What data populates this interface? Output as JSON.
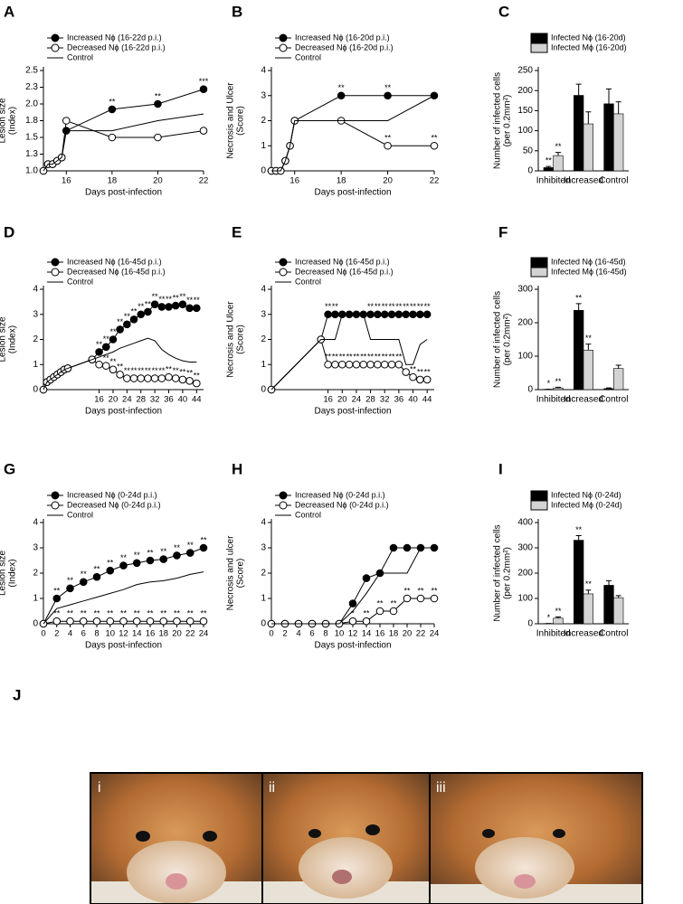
{
  "chart_data": [
    {
      "type": "line",
      "panel": "A",
      "ylabel": [
        "Lesion size",
        "(Index)"
      ],
      "xlabel": "Days post-infection",
      "x": [
        15,
        15.2,
        15.4,
        15.6,
        15.8,
        16,
        18,
        20,
        22
      ],
      "xlim": [
        15,
        22
      ],
      "xticks": [
        16,
        18,
        20,
        22
      ],
      "ylim": [
        1,
        2.5
      ],
      "yticks": [
        {
          "value": 1,
          "label": "1.0"
        },
        {
          "value": 1.25,
          "label": "1.3"
        },
        1.5,
        {
          "value": 1.75,
          "label": "1.8"
        },
        {
          "value": 2,
          "label": "2.0"
        },
        {
          "value": 2.25,
          "label": "2.3"
        },
        2.5
      ],
      "series": [
        {
          "name": "Increased Nϕ (16-22d p.i.)",
          "color": "#000000",
          "marker": "filled",
          "values": [
            1.0,
            1.1,
            1.1,
            1.15,
            1.2,
            1.6,
            1.92,
            2.0,
            2.22
          ],
          "annotations": [
            null,
            null,
            null,
            null,
            null,
            null,
            "**",
            "**",
            "***"
          ]
        },
        {
          "name": "Decreased Nϕ (16-22d p.i.)",
          "color": "#000000",
          "marker": "open",
          "values": [
            1.0,
            1.1,
            1.1,
            1.15,
            1.2,
            1.75,
            1.5,
            1.5,
            1.6
          ]
        },
        {
          "name": "Control",
          "color": "#000000",
          "marker": "none",
          "values": [
            1.0,
            1.1,
            1.1,
            1.15,
            1.2,
            1.6,
            1.6,
            1.75,
            1.85
          ]
        }
      ]
    },
    {
      "type": "line",
      "panel": "B",
      "ylabel": [
        "Necrosis and Ulcer",
        "(Score)"
      ],
      "xlabel": "Days post-infection",
      "x": [
        15,
        15.2,
        15.4,
        15.6,
        15.8,
        16,
        18,
        20,
        22
      ],
      "xlim": [
        15,
        22
      ],
      "xticks": [
        16,
        18,
        20,
        22
      ],
      "ylim": [
        0,
        4
      ],
      "yticks": [
        0,
        1,
        2,
        3,
        4
      ],
      "series": [
        {
          "name": "Increased Nϕ (16-20d p.i.)",
          "color": "#000000",
          "marker": "filled",
          "values": [
            0,
            0,
            0,
            0.4,
            1,
            2,
            3,
            3,
            3
          ],
          "annotations": [
            null,
            null,
            null,
            null,
            null,
            null,
            "**",
            "**",
            null
          ]
        },
        {
          "name": "Decreased Nϕ (16-20d p.i.)",
          "color": "#000000",
          "marker": "open",
          "values": [
            0,
            0,
            0,
            0.4,
            1,
            2,
            2,
            1,
            1
          ],
          "annotations": [
            null,
            null,
            null,
            null,
            null,
            null,
            null,
            "**",
            "**"
          ]
        },
        {
          "name": "Control",
          "color": "#000000",
          "marker": "none",
          "values": [
            0,
            0,
            0,
            0.4,
            1,
            2,
            2,
            2,
            3
          ]
        }
      ]
    },
    {
      "type": "bar",
      "panel": "C",
      "ylabel": [
        "Number of infected cells",
        "(per 0.2mm²)"
      ],
      "categories": [
        "Inhibited",
        "Increased",
        "Control"
      ],
      "ylim": [
        0,
        250
      ],
      "yticks": [
        0,
        50,
        100,
        150,
        200,
        250
      ],
      "series": [
        {
          "name": "Infected Nϕ (16-20d)",
          "color": "#000000",
          "values": [
            8,
            188,
            167
          ],
          "errors": [
            3,
            28,
            37
          ],
          "annotations": [
            "**",
            null,
            null
          ]
        },
        {
          "name": "Infected Mϕ (16-20d)",
          "color": "#d3d3d3",
          "values": [
            38,
            117,
            142
          ],
          "errors": [
            8,
            30,
            30
          ],
          "annotations": [
            "**",
            null,
            null
          ]
        }
      ]
    },
    {
      "type": "line",
      "panel": "D",
      "ylabel": [
        "Lesion size",
        "(Index)"
      ],
      "xlabel": "Days post-infection",
      "x": [
        0,
        1,
        2,
        3,
        4,
        5,
        6,
        7,
        14,
        16,
        18,
        20,
        22,
        24,
        26,
        28,
        30,
        32,
        34,
        36,
        38,
        40,
        42,
        44
      ],
      "xlim": [
        0,
        46
      ],
      "xticks": [
        16,
        20,
        24,
        28,
        32,
        36,
        40,
        44
      ],
      "ylim": [
        0,
        4
      ],
      "yticks": [
        0,
        1,
        2,
        3,
        4
      ],
      "series": [
        {
          "name": "Increased Nϕ (16-45d p.i.)",
          "color": "#000000",
          "marker": "filled",
          "values": [
            0,
            0.3,
            0.4,
            0.5,
            0.6,
            0.7,
            0.8,
            0.85,
            1.2,
            1.5,
            1.7,
            2.0,
            2.4,
            2.6,
            2.8,
            3.0,
            3.1,
            3.4,
            3.3,
            3.3,
            3.35,
            3.4,
            3.25,
            3.25
          ],
          "annotations": [
            null,
            null,
            null,
            null,
            null,
            null,
            null,
            null,
            null,
            "**",
            "**",
            "**",
            "**",
            "**",
            "**",
            "**",
            "**",
            "**",
            "**",
            "**",
            "**",
            "**",
            "**",
            "**"
          ]
        },
        {
          "name": "Decreased Nϕ (16-45d p.i.)",
          "color": "#000000",
          "marker": "open",
          "values": [
            0,
            0.3,
            0.4,
            0.5,
            0.6,
            0.7,
            0.8,
            0.85,
            1.2,
            1.0,
            0.95,
            0.8,
            0.6,
            0.45,
            0.45,
            0.45,
            0.45,
            0.45,
            0.45,
            0.5,
            0.45,
            0.4,
            0.35,
            0.25
          ],
          "annotations": [
            null,
            null,
            null,
            null,
            null,
            null,
            null,
            null,
            null,
            null,
            "**",
            "**",
            "**",
            "**",
            "**",
            "**",
            "**",
            "**",
            "**",
            "**",
            "**",
            "**",
            "**",
            "**"
          ]
        },
        {
          "name": "Control",
          "color": "#000000",
          "marker": "none",
          "values": [
            0,
            0.3,
            0.4,
            0.5,
            0.6,
            0.7,
            0.8,
            0.85,
            1.2,
            1.3,
            1.4,
            1.5,
            1.65,
            1.75,
            1.85,
            1.95,
            2.05,
            1.95,
            1.6,
            1.4,
            1.25,
            1.15,
            1.1,
            1.1
          ]
        }
      ]
    },
    {
      "type": "line",
      "panel": "E",
      "ylabel": [
        "Necrosis and Ulcer",
        "(Score)"
      ],
      "xlabel": "Days post-infection",
      "x": [
        0,
        14,
        16,
        18,
        20,
        22,
        24,
        26,
        28,
        30,
        32,
        34,
        36,
        38,
        40,
        42,
        44
      ],
      "xlim": [
        0,
        46
      ],
      "xticks": [
        16,
        20,
        24,
        28,
        32,
        36,
        40,
        44
      ],
      "ylim": [
        0,
        4
      ],
      "yticks": [
        0,
        1,
        2,
        3,
        4
      ],
      "series": [
        {
          "name": "Increased Nϕ (16-45d p.i.)",
          "color": "#000000",
          "marker": "filled",
          "values": [
            0,
            2,
            3,
            3,
            3,
            3,
            3,
            3,
            3,
            3,
            3,
            3,
            3,
            3,
            3,
            3,
            3
          ],
          "annotations": [
            null,
            null,
            "**",
            "**",
            null,
            null,
            null,
            null,
            "**",
            "**",
            "**",
            "**",
            "**",
            "**",
            "**",
            "**",
            "**"
          ]
        },
        {
          "name": "Decreased Nϕ (16-45d p.i.)",
          "color": "#000000",
          "marker": "open",
          "values": [
            0,
            2,
            1,
            1,
            1,
            1,
            1,
            1,
            1,
            1,
            1,
            1,
            1,
            0.7,
            0.5,
            0.4,
            0.4
          ],
          "annotations": [
            null,
            null,
            "**",
            "**",
            "**",
            "**",
            "**",
            "**",
            "**",
            "**",
            "**",
            "**",
            "**",
            null,
            "**",
            "**",
            "**"
          ]
        },
        {
          "name": "Control",
          "color": "#000000",
          "marker": "none",
          "values": [
            0,
            2,
            2,
            2,
            3,
            3,
            3,
            3,
            2,
            2,
            2,
            2,
            2,
            1,
            1,
            1.8,
            2
          ]
        }
      ]
    },
    {
      "type": "bar",
      "panel": "F",
      "ylabel": [
        "Number of infected cells",
        "(per 0.2mm²)"
      ],
      "categories": [
        "Inhibited",
        "Increased",
        "Control"
      ],
      "ylim": [
        0,
        300
      ],
      "yticks": [
        0,
        100,
        200,
        300
      ],
      "series": [
        {
          "name": "Infected Nϕ (16-45d)",
          "color": "#000000",
          "values": [
            1,
            237,
            3
          ],
          "errors": [
            0,
            20,
            2
          ],
          "annotations": [
            "*",
            "**",
            null
          ]
        },
        {
          "name": "Infected Mϕ (16-45d)",
          "color": "#d3d3d3",
          "values": [
            5,
            118,
            63
          ],
          "errors": [
            2,
            18,
            10
          ],
          "annotations": [
            "**",
            "**",
            null
          ]
        }
      ]
    },
    {
      "type": "line",
      "panel": "G",
      "ylabel": [
        "Lesion size",
        "(Index)"
      ],
      "xlabel": "Days post-infection",
      "x": [
        0,
        2,
        4,
        6,
        8,
        10,
        12,
        14,
        16,
        18,
        20,
        22,
        24
      ],
      "xlim": [
        0,
        24
      ],
      "xticks": [
        0,
        2,
        4,
        6,
        8,
        10,
        12,
        14,
        16,
        18,
        20,
        22,
        24
      ],
      "ylim": [
        0,
        4
      ],
      "yticks": [
        0,
        1,
        2,
        3,
        4
      ],
      "series": [
        {
          "name": "Increased Nϕ (0-24d p.i.)",
          "color": "#000000",
          "marker": "filled",
          "values": [
            0,
            1.0,
            1.4,
            1.65,
            1.85,
            2.1,
            2.3,
            2.4,
            2.5,
            2.55,
            2.7,
            2.8,
            3.0
          ],
          "annotations": [
            null,
            "**",
            "**",
            "**",
            "**",
            "**",
            "**",
            "**",
            "**",
            "**",
            "**",
            "**",
            "**"
          ]
        },
        {
          "name": "Decreased Nϕ (0-24d p.i.)",
          "color": "#000000",
          "marker": "open",
          "values": [
            0,
            0.1,
            0.1,
            0.1,
            0.1,
            0.1,
            0.1,
            0.1,
            0.1,
            0.1,
            0.1,
            0.1,
            0.1
          ],
          "annotations": [
            null,
            "**",
            "**",
            "**",
            "**",
            "**",
            "**",
            "**",
            "**",
            "**",
            "**",
            "**",
            "**"
          ]
        },
        {
          "name": "Control",
          "color": "#000000",
          "marker": "none",
          "values": [
            0,
            0.6,
            0.75,
            0.9,
            1.05,
            1.2,
            1.35,
            1.55,
            1.65,
            1.7,
            1.8,
            1.95,
            2.05
          ]
        }
      ]
    },
    {
      "type": "line",
      "panel": "H",
      "ylabel": [
        "Necrosis and ulcer",
        "(Score)"
      ],
      "xlabel": "Days post-infection",
      "x": [
        0,
        2,
        4,
        6,
        8,
        10,
        12,
        14,
        16,
        18,
        20,
        22,
        24
      ],
      "xlim": [
        0,
        24
      ],
      "xticks": [
        0,
        2,
        4,
        6,
        8,
        10,
        12,
        14,
        16,
        18,
        20,
        22,
        24
      ],
      "ylim": [
        0,
        4
      ],
      "yticks": [
        0,
        1,
        2,
        3,
        4
      ],
      "series": [
        {
          "name": "Increased Nϕ (0-24d p.i.)",
          "color": "#000000",
          "marker": "filled",
          "values": [
            0,
            0,
            0,
            0,
            0,
            0,
            0.8,
            1.8,
            2.0,
            3,
            3,
            3,
            3
          ]
        },
        {
          "name": "Decreased Nϕ (0-24d p.i.)",
          "color": "#000000",
          "marker": "open",
          "values": [
            0,
            0,
            0,
            0,
            0,
            0,
            0.1,
            0.1,
            0.5,
            0.5,
            1,
            1,
            1
          ],
          "annotations": [
            null,
            null,
            null,
            null,
            null,
            null,
            "*",
            "**",
            "**",
            "**",
            "**",
            "**",
            "**"
          ]
        },
        {
          "name": "Control",
          "color": "#000000",
          "marker": "none",
          "values": [
            0,
            0,
            0,
            0,
            0,
            0,
            0.5,
            1.2,
            2,
            2,
            2,
            3,
            3
          ]
        }
      ]
    },
    {
      "type": "bar",
      "panel": "I",
      "ylabel": [
        "Number of infected cells",
        "(per 0.2mm²)"
      ],
      "categories": [
        "Inhibited",
        "Increased",
        "Control"
      ],
      "ylim": [
        0,
        400
      ],
      "yticks": [
        0,
        100,
        200,
        300,
        400
      ],
      "series": [
        {
          "name": "Infected Nϕ (0-24d)",
          "color": "#000000",
          "values": [
            1,
            330,
            152
          ],
          "errors": [
            0,
            18,
            18
          ],
          "annotations": [
            "*",
            "**",
            null
          ]
        },
        {
          "name": "Infected Mϕ (0-24d)",
          "color": "#d3d3d3",
          "values": [
            22,
            118,
            103
          ],
          "errors": [
            5,
            15,
            8
          ],
          "annotations": [
            "**",
            "**",
            null
          ]
        }
      ]
    }
  ],
  "photo_panel": {
    "label": "J",
    "images": [
      "i",
      "ii",
      "iii"
    ]
  }
}
